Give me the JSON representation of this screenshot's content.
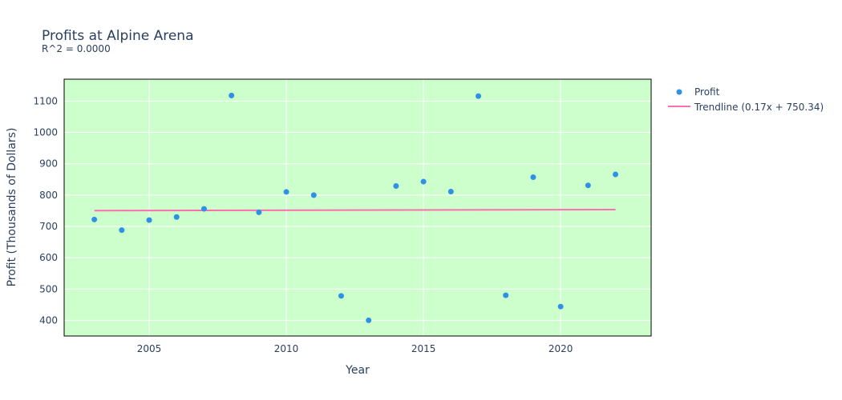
{
  "chart_data": {
    "type": "scatter",
    "title": "Profits at Alpine Arena",
    "subtitle": "R^2 = 0.0000",
    "xlabel": "Year",
    "ylabel": "Profit (Thousands of Dollars)",
    "xlim": [
      2001.9,
      2023.3
    ],
    "ylim": [
      350,
      1170
    ],
    "xticks": [
      2005,
      2010,
      2015,
      2020
    ],
    "yticks": [
      400,
      500,
      600,
      700,
      800,
      900,
      1000,
      1100
    ],
    "grid": true,
    "legend_position": "top-right",
    "series": [
      {
        "name": "Profit",
        "kind": "markers",
        "color": "#2e91e5",
        "x": [
          2003,
          2004,
          2005,
          2006,
          2007,
          2008,
          2009,
          2010,
          2011,
          2012,
          2013,
          2014,
          2015,
          2016,
          2017,
          2018,
          2019,
          2020,
          2021,
          2022
        ],
        "y": [
          722,
          688,
          720,
          730,
          756,
          1118,
          745,
          810,
          800,
          478,
          400,
          829,
          843,
          811,
          1116,
          480,
          857,
          444,
          831,
          866
        ]
      },
      {
        "name": "Trendline (0.17x + 750.34)",
        "kind": "line",
        "color": "#fc6faf",
        "x": [
          2003,
          2022
        ],
        "y": [
          750.34,
          753.57
        ]
      }
    ]
  },
  "colors": {
    "plot_background": "#ccffcc",
    "grid": "#ffffff",
    "text": "#2a3f5f"
  }
}
